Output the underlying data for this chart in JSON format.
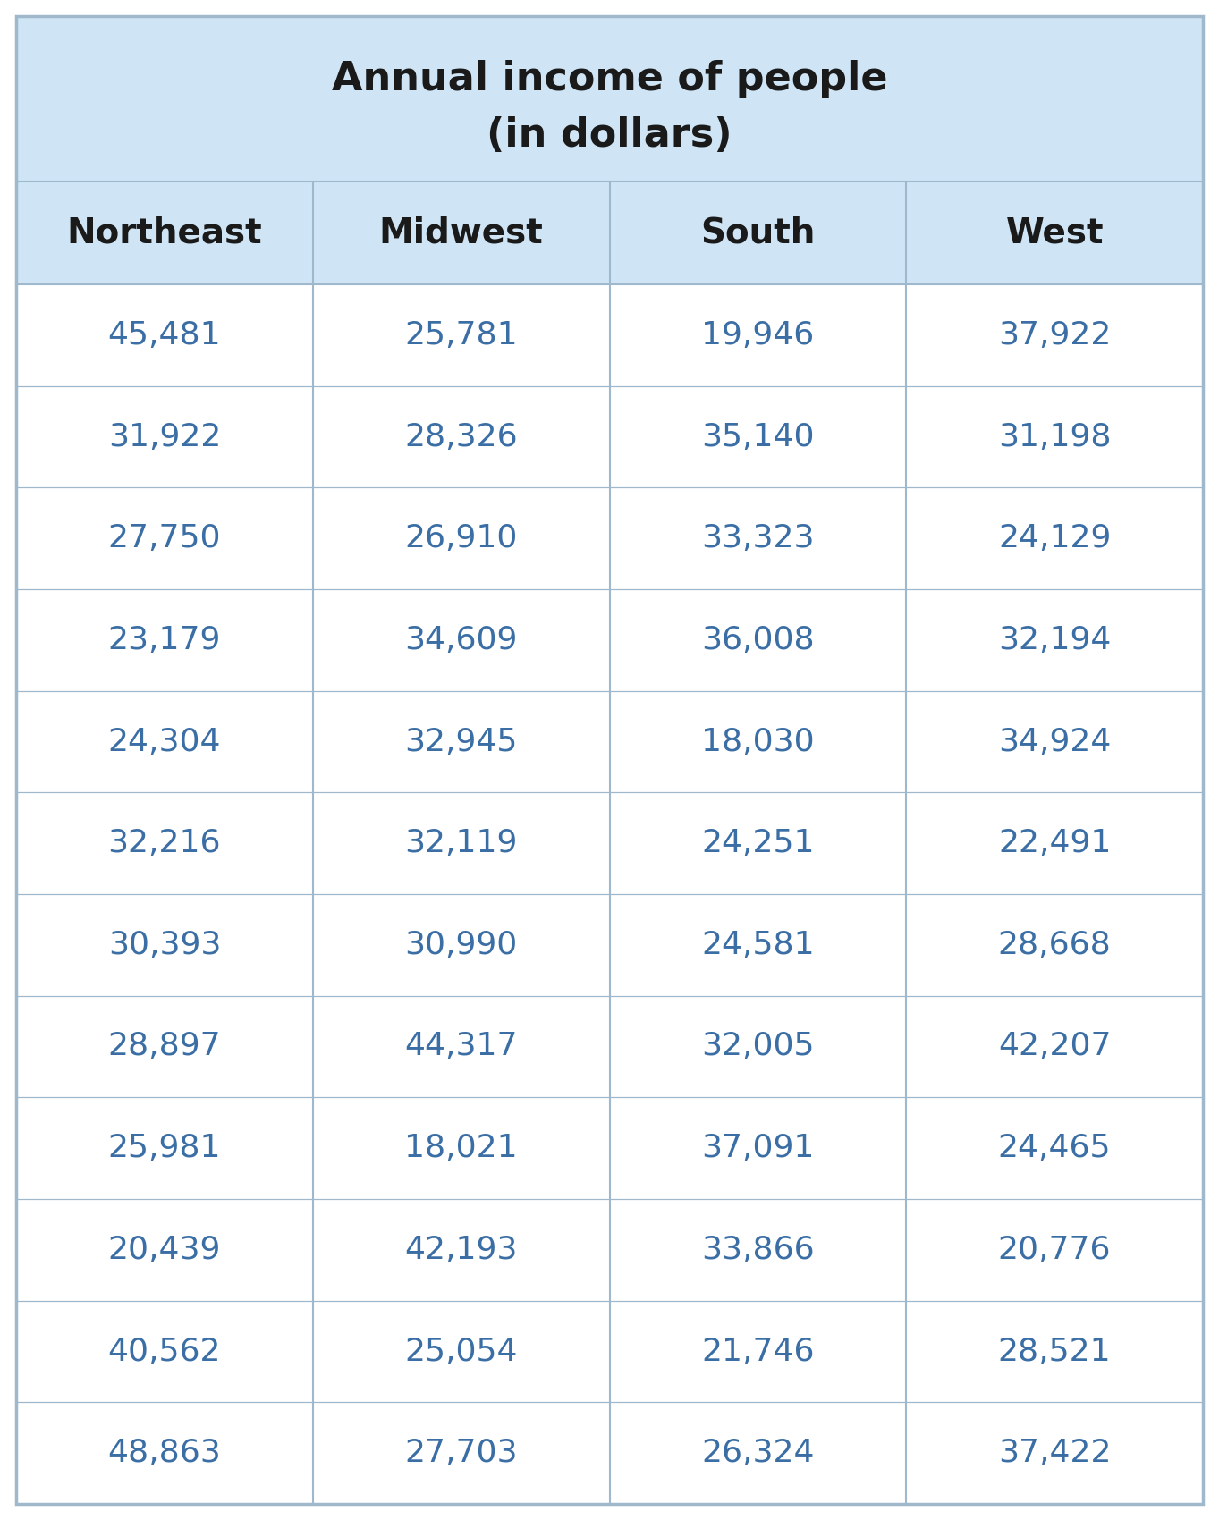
{
  "title_line1": "Annual income of people",
  "title_line2": "(in dollars)",
  "columns": [
    "Northeast",
    "Midwest",
    "South",
    "West"
  ],
  "data": [
    [
      "45,481",
      "25,781",
      "19,946",
      "37,922"
    ],
    [
      "31,922",
      "28,326",
      "35,140",
      "31,198"
    ],
    [
      "27,750",
      "26,910",
      "33,323",
      "24,129"
    ],
    [
      "23,179",
      "34,609",
      "36,008",
      "32,194"
    ],
    [
      "24,304",
      "32,945",
      "18,030",
      "34,924"
    ],
    [
      "32,216",
      "32,119",
      "24,251",
      "22,491"
    ],
    [
      "30,393",
      "30,990",
      "24,581",
      "28,668"
    ],
    [
      "28,897",
      "44,317",
      "32,005",
      "42,207"
    ],
    [
      "25,981",
      "18,021",
      "37,091",
      "24,465"
    ],
    [
      "20,439",
      "42,193",
      "33,866",
      "20,776"
    ],
    [
      "40,562",
      "25,054",
      "21,746",
      "28,521"
    ],
    [
      "48,863",
      "27,703",
      "26,324",
      "37,422"
    ]
  ],
  "header_bg": "#cfe5f5",
  "title_bg": "#cfe5f5",
  "data_bg": "#ffffff",
  "border_color": "#a0b8cc",
  "title_color": "#1a1a1a",
  "header_color": "#1a1a1a",
  "data_color": "#3a6ea5",
  "title_fontsize": 32,
  "header_fontsize": 28,
  "data_fontsize": 26,
  "outer_border_color": "#a0b8cc",
  "fig_bg": "#ffffff"
}
